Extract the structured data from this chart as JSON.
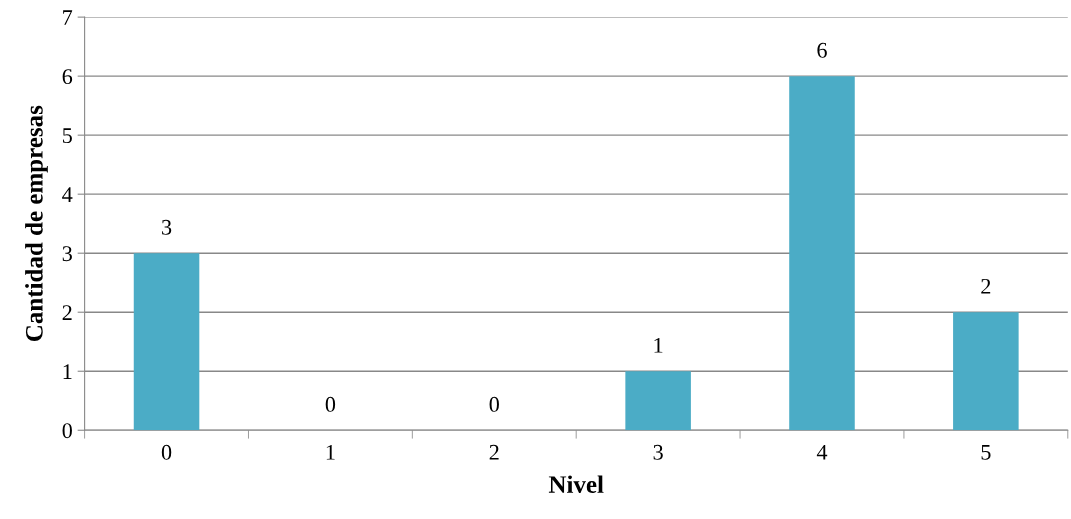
{
  "chart_data": {
    "type": "bar",
    "xlabel": "Nivel",
    "ylabel": "Cantidad de empresas",
    "categories": [
      "0",
      "1",
      "2",
      "3",
      "4",
      "5"
    ],
    "values": [
      3,
      0,
      0,
      1,
      6,
      2
    ],
    "color": "#4bacc6",
    "ylim": [
      0,
      7
    ],
    "yticks": [
      0,
      1,
      2,
      3,
      4,
      5,
      6,
      7
    ],
    "grid": "y",
    "data_labels": true
  }
}
